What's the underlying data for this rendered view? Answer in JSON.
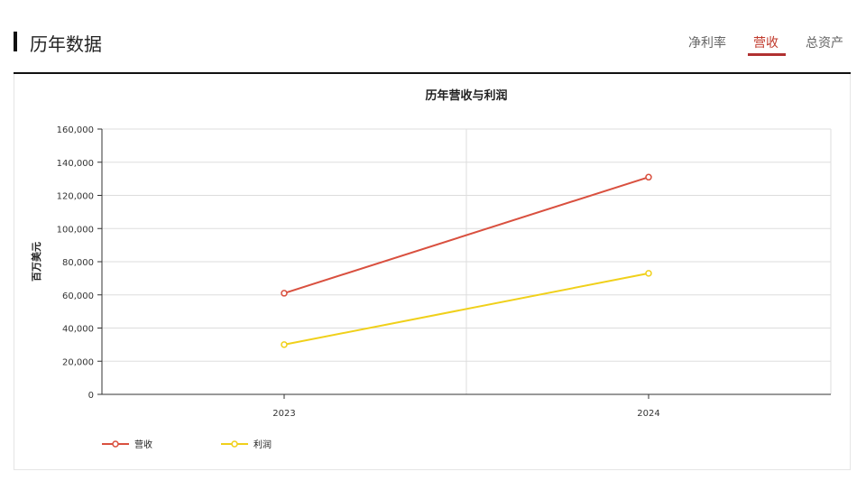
{
  "header": {
    "title": "历年数据",
    "tabs": [
      {
        "label": "净利率"
      },
      {
        "label": "营收",
        "active": true
      },
      {
        "label": "总资产"
      }
    ]
  },
  "colors": {
    "revenue": "#d9503f",
    "profit": "#f0d01a",
    "accent": "#b03030"
  },
  "chart_data": {
    "type": "line",
    "title": "历年营收与利润",
    "xlabel": "",
    "ylabel": "百万美元",
    "categories": [
      "2023",
      "2024"
    ],
    "ylim": [
      0,
      160000
    ],
    "yticks": [
      "0",
      "20,000",
      "40,000",
      "60,000",
      "80,000",
      "100,000",
      "120,000",
      "140,000",
      "160,000"
    ],
    "grid": true,
    "legend": "bottom-left",
    "series": [
      {
        "name": "营收",
        "values": [
          61000,
          131000
        ],
        "color": "#d9503f"
      },
      {
        "name": "利润",
        "values": [
          30000,
          73000
        ],
        "color": "#f0d01a"
      }
    ]
  }
}
